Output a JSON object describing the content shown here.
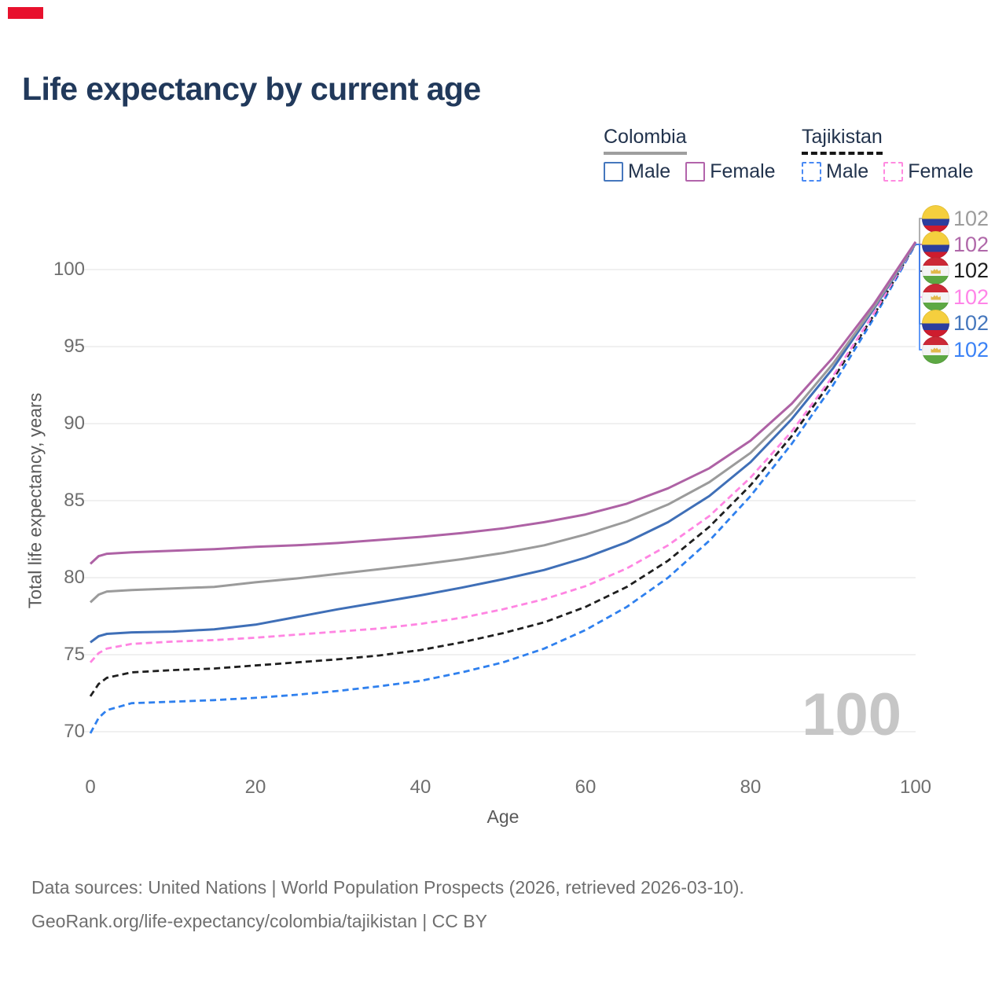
{
  "marker": {
    "color": "#e8112d"
  },
  "title": "Life expectancy by current age",
  "legend": {
    "groups": [
      {
        "title": "Colombia",
        "line_style": "solid",
        "line_color": "#9e9e9e",
        "items": [
          {
            "label": "Male",
            "color": "#4577bd",
            "dashed": false
          },
          {
            "label": "Female",
            "color": "#b264ab",
            "dashed": false
          }
        ]
      },
      {
        "title": "Tajikistan",
        "line_style": "dashed",
        "line_color": "#161616",
        "items": [
          {
            "label": "Male",
            "color": "#4a8af4",
            "dashed": true
          },
          {
            "label": "Female",
            "color": "#ff8ae0",
            "dashed": true
          }
        ]
      }
    ]
  },
  "chart_data": {
    "type": "line",
    "title": "Life expectancy by current age",
    "xlabel": "Age",
    "ylabel": "Total life expectancy, years",
    "xlim": [
      0,
      100
    ],
    "ylim": [
      68,
      103
    ],
    "x_ticks": [
      0,
      20,
      40,
      60,
      80,
      100
    ],
    "y_ticks": [
      70,
      75,
      80,
      85,
      90,
      95,
      100
    ],
    "grid": "horizontal",
    "legend_position": "top-right",
    "series": [
      {
        "id": "colombia-female",
        "country": "Colombia",
        "sex": "Female",
        "color": "#ae62a5",
        "dashed": false,
        "end_label": "102",
        "points": [
          [
            0,
            80.9
          ],
          [
            1,
            81.4
          ],
          [
            2,
            81.55
          ],
          [
            5,
            81.65
          ],
          [
            10,
            81.75
          ],
          [
            15,
            81.85
          ],
          [
            20,
            82.0
          ],
          [
            25,
            82.1
          ],
          [
            30,
            82.25
          ],
          [
            35,
            82.45
          ],
          [
            40,
            82.65
          ],
          [
            45,
            82.9
          ],
          [
            50,
            83.2
          ],
          [
            55,
            83.6
          ],
          [
            60,
            84.1
          ],
          [
            65,
            84.8
          ],
          [
            70,
            85.8
          ],
          [
            75,
            87.1
          ],
          [
            80,
            88.9
          ],
          [
            85,
            91.3
          ],
          [
            90,
            94.3
          ],
          [
            95,
            97.8
          ],
          [
            100,
            101.8
          ]
        ]
      },
      {
        "id": "colombia-all",
        "country": "Colombia",
        "sex": "All",
        "color": "#9b9b9b",
        "dashed": false,
        "end_label": "102",
        "points": [
          [
            0,
            78.4
          ],
          [
            1,
            78.9
          ],
          [
            2,
            79.1
          ],
          [
            5,
            79.2
          ],
          [
            10,
            79.3
          ],
          [
            15,
            79.4
          ],
          [
            20,
            79.7
          ],
          [
            25,
            79.95
          ],
          [
            30,
            80.25
          ],
          [
            35,
            80.55
          ],
          [
            40,
            80.85
          ],
          [
            45,
            81.2
          ],
          [
            50,
            81.6
          ],
          [
            55,
            82.1
          ],
          [
            60,
            82.8
          ],
          [
            65,
            83.65
          ],
          [
            70,
            84.75
          ],
          [
            75,
            86.2
          ],
          [
            80,
            88.1
          ],
          [
            85,
            90.7
          ],
          [
            90,
            93.9
          ],
          [
            95,
            97.6
          ],
          [
            100,
            101.75
          ]
        ]
      },
      {
        "id": "colombia-male",
        "country": "Colombia",
        "sex": "Male",
        "color": "#3f6fb7",
        "dashed": false,
        "end_label": "102",
        "points": [
          [
            0,
            75.8
          ],
          [
            1,
            76.2
          ],
          [
            2,
            76.35
          ],
          [
            5,
            76.45
          ],
          [
            10,
            76.5
          ],
          [
            15,
            76.65
          ],
          [
            20,
            76.95
          ],
          [
            25,
            77.45
          ],
          [
            30,
            77.95
          ],
          [
            35,
            78.4
          ],
          [
            40,
            78.85
          ],
          [
            45,
            79.35
          ],
          [
            50,
            79.9
          ],
          [
            55,
            80.5
          ],
          [
            60,
            81.3
          ],
          [
            65,
            82.3
          ],
          [
            70,
            83.6
          ],
          [
            75,
            85.3
          ],
          [
            80,
            87.5
          ],
          [
            85,
            90.3
          ],
          [
            90,
            93.6
          ],
          [
            95,
            97.5
          ],
          [
            100,
            101.7
          ]
        ]
      },
      {
        "id": "tajikistan-female",
        "country": "Tajikistan",
        "sex": "Female",
        "color": "#ff85e2",
        "dashed": true,
        "end_label": "102",
        "points": [
          [
            0,
            74.5
          ],
          [
            1,
            75.1
          ],
          [
            2,
            75.4
          ],
          [
            5,
            75.7
          ],
          [
            10,
            75.85
          ],
          [
            15,
            75.95
          ],
          [
            20,
            76.1
          ],
          [
            25,
            76.3
          ],
          [
            30,
            76.5
          ],
          [
            35,
            76.7
          ],
          [
            40,
            77.0
          ],
          [
            45,
            77.4
          ],
          [
            50,
            77.95
          ],
          [
            55,
            78.6
          ],
          [
            60,
            79.45
          ],
          [
            65,
            80.6
          ],
          [
            70,
            82.1
          ],
          [
            75,
            84.0
          ],
          [
            80,
            86.5
          ],
          [
            85,
            89.5
          ],
          [
            90,
            93.1
          ],
          [
            95,
            97.2
          ],
          [
            100,
            101.7
          ]
        ]
      },
      {
        "id": "tajikistan-all",
        "country": "Tajikistan",
        "sex": "All",
        "color": "#1f1f1f",
        "dashed": true,
        "end_label": "102",
        "points": [
          [
            0,
            72.3
          ],
          [
            1,
            73.1
          ],
          [
            2,
            73.5
          ],
          [
            5,
            73.85
          ],
          [
            10,
            74.0
          ],
          [
            15,
            74.1
          ],
          [
            20,
            74.3
          ],
          [
            25,
            74.5
          ],
          [
            30,
            74.7
          ],
          [
            35,
            74.95
          ],
          [
            40,
            75.3
          ],
          [
            45,
            75.8
          ],
          [
            50,
            76.4
          ],
          [
            55,
            77.1
          ],
          [
            60,
            78.1
          ],
          [
            65,
            79.4
          ],
          [
            70,
            81.1
          ],
          [
            75,
            83.3
          ],
          [
            80,
            86.0
          ],
          [
            85,
            89.2
          ],
          [
            90,
            92.9
          ],
          [
            95,
            97.1
          ],
          [
            100,
            101.7
          ]
        ]
      },
      {
        "id": "tajikistan-male",
        "country": "Tajikistan",
        "sex": "Male",
        "color": "#2f80ee",
        "dashed": true,
        "end_label": "102",
        "points": [
          [
            0,
            69.9
          ],
          [
            1,
            70.9
          ],
          [
            2,
            71.4
          ],
          [
            5,
            71.85
          ],
          [
            10,
            71.95
          ],
          [
            15,
            72.05
          ],
          [
            20,
            72.2
          ],
          [
            25,
            72.4
          ],
          [
            30,
            72.65
          ],
          [
            35,
            72.95
          ],
          [
            40,
            73.3
          ],
          [
            45,
            73.85
          ],
          [
            50,
            74.5
          ],
          [
            55,
            75.4
          ],
          [
            60,
            76.6
          ],
          [
            65,
            78.1
          ],
          [
            70,
            80.0
          ],
          [
            75,
            82.4
          ],
          [
            80,
            85.3
          ],
          [
            85,
            88.7
          ],
          [
            90,
            92.5
          ],
          [
            95,
            96.9
          ],
          [
            100,
            101.65
          ]
        ]
      }
    ]
  },
  "end_labels": [
    {
      "series_id": "colombia-all",
      "flag": "colombia",
      "value": "102",
      "color": "#9c9c9c"
    },
    {
      "series_id": "colombia-female",
      "flag": "colombia",
      "value": "102",
      "color": "#b068a9"
    },
    {
      "series_id": "tajikistan-all",
      "flag": "tajikistan",
      "value": "102",
      "color": "#1c1c1c"
    },
    {
      "series_id": "tajikistan-female",
      "flag": "tajikistan",
      "value": "102",
      "color": "#ff84e8"
    },
    {
      "series_id": "colombia-male",
      "flag": "colombia",
      "value": "102",
      "color": "#4577bd"
    },
    {
      "series_id": "tajikistan-male",
      "flag": "tajikistan",
      "value": "102",
      "color": "#3b82f6"
    }
  ],
  "watermark": "100",
  "footer": {
    "line1": "Data sources: United Nations | World Population Prospects (2026, retrieved 2026-03-10).",
    "line2": "GeoRank.org/life-expectancy/colombia/tajikistan | CC BY"
  }
}
